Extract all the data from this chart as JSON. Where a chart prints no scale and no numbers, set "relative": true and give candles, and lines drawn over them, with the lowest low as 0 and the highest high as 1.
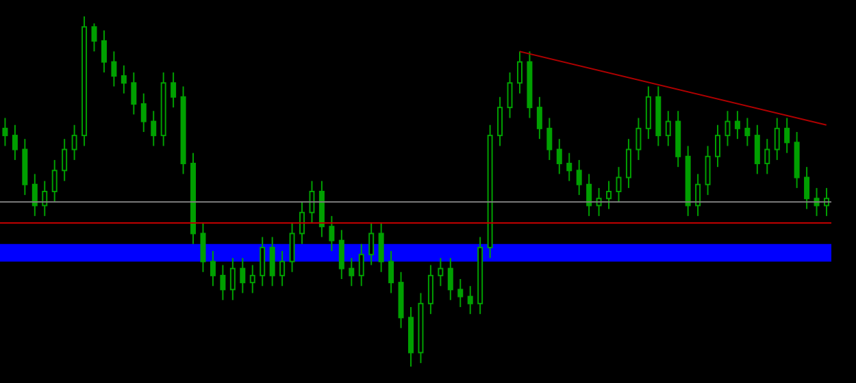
{
  "chart_data": {
    "type": "candlestick",
    "relative": true,
    "categories": [
      null,
      null,
      null,
      null,
      null,
      null,
      null,
      null,
      null,
      null,
      null,
      null,
      null,
      null,
      null,
      null,
      null,
      null,
      null,
      null,
      null,
      null,
      null,
      null,
      null,
      null,
      null,
      null,
      null,
      null,
      null,
      null,
      null,
      null,
      null,
      null,
      null,
      null,
      null,
      null,
      null,
      null,
      null,
      null,
      null,
      null,
      null,
      null,
      null,
      null,
      null,
      null,
      null,
      null,
      null,
      null,
      null,
      null,
      null,
      null,
      null,
      null,
      null,
      null,
      null,
      null,
      null,
      null,
      null,
      null,
      null,
      null,
      null,
      null,
      null,
      null,
      null,
      null,
      null,
      null,
      null,
      null,
      null,
      null
    ],
    "series": [
      {
        "color": "#00a000",
        "ohlc": [
          [
            0.68,
            0.71,
            0.63,
            0.66
          ],
          [
            0.66,
            0.69,
            0.59,
            0.62
          ],
          [
            0.62,
            0.65,
            0.49,
            0.52
          ],
          [
            0.52,
            0.55,
            0.43,
            0.46
          ],
          [
            0.46,
            0.53,
            0.43,
            0.5
          ],
          [
            0.5,
            0.59,
            0.47,
            0.56
          ],
          [
            0.56,
            0.65,
            0.53,
            0.62
          ],
          [
            0.62,
            0.69,
            0.59,
            0.66
          ],
          [
            0.66,
            1.0,
            0.63,
            0.97
          ],
          [
            0.97,
            0.98,
            0.9,
            0.93
          ],
          [
            0.93,
            0.96,
            0.84,
            0.87
          ],
          [
            0.87,
            0.9,
            0.8,
            0.83
          ],
          [
            0.83,
            0.86,
            0.78,
            0.81
          ],
          [
            0.81,
            0.84,
            0.72,
            0.75
          ],
          [
            0.75,
            0.78,
            0.67,
            0.7
          ],
          [
            0.7,
            0.73,
            0.63,
            0.66
          ],
          [
            0.66,
            0.84,
            0.63,
            0.81
          ],
          [
            0.81,
            0.84,
            0.74,
            0.77
          ],
          [
            0.77,
            0.8,
            0.55,
            0.58
          ],
          [
            0.58,
            0.61,
            0.35,
            0.38
          ],
          [
            0.38,
            0.41,
            0.27,
            0.3
          ],
          [
            0.3,
            0.33,
            0.23,
            0.26
          ],
          [
            0.26,
            0.29,
            0.19,
            0.22
          ],
          [
            0.22,
            0.31,
            0.19,
            0.28
          ],
          [
            0.28,
            0.31,
            0.21,
            0.24
          ],
          [
            0.24,
            0.29,
            0.21,
            0.26
          ],
          [
            0.26,
            0.37,
            0.23,
            0.34
          ],
          [
            0.34,
            0.37,
            0.23,
            0.26
          ],
          [
            0.26,
            0.33,
            0.23,
            0.3
          ],
          [
            0.3,
            0.41,
            0.27,
            0.38
          ],
          [
            0.38,
            0.47,
            0.35,
            0.44
          ],
          [
            0.44,
            0.53,
            0.41,
            0.5
          ],
          [
            0.5,
            0.53,
            0.37,
            0.4
          ],
          [
            0.4,
            0.43,
            0.33,
            0.36
          ],
          [
            0.36,
            0.39,
            0.25,
            0.28
          ],
          [
            0.28,
            0.31,
            0.23,
            0.26
          ],
          [
            0.26,
            0.35,
            0.23,
            0.32
          ],
          [
            0.32,
            0.41,
            0.29,
            0.38
          ],
          [
            0.38,
            0.41,
            0.27,
            0.3
          ],
          [
            0.3,
            0.33,
            0.21,
            0.24
          ],
          [
            0.24,
            0.27,
            0.11,
            0.14
          ],
          [
            0.14,
            0.17,
            0.0,
            0.04
          ],
          [
            0.04,
            0.21,
            0.01,
            0.18
          ],
          [
            0.18,
            0.29,
            0.15,
            0.26
          ],
          [
            0.26,
            0.31,
            0.23,
            0.28
          ],
          [
            0.28,
            0.31,
            0.19,
            0.22
          ],
          [
            0.22,
            0.25,
            0.17,
            0.2
          ],
          [
            0.2,
            0.23,
            0.15,
            0.18
          ],
          [
            0.18,
            0.37,
            0.15,
            0.34
          ],
          [
            0.34,
            0.69,
            0.31,
            0.66
          ],
          [
            0.66,
            0.77,
            0.63,
            0.74
          ],
          [
            0.74,
            0.84,
            0.71,
            0.81
          ],
          [
            0.81,
            0.9,
            0.78,
            0.87
          ],
          [
            0.87,
            0.9,
            0.71,
            0.74
          ],
          [
            0.74,
            0.77,
            0.65,
            0.68
          ],
          [
            0.68,
            0.71,
            0.59,
            0.62
          ],
          [
            0.62,
            0.65,
            0.55,
            0.58
          ],
          [
            0.58,
            0.61,
            0.53,
            0.56
          ],
          [
            0.56,
            0.59,
            0.49,
            0.52
          ],
          [
            0.52,
            0.55,
            0.43,
            0.46
          ],
          [
            0.46,
            0.51,
            0.43,
            0.48
          ],
          [
            0.48,
            0.53,
            0.45,
            0.5
          ],
          [
            0.5,
            0.57,
            0.47,
            0.54
          ],
          [
            0.54,
            0.65,
            0.51,
            0.62
          ],
          [
            0.62,
            0.71,
            0.59,
            0.68
          ],
          [
            0.68,
            0.8,
            0.65,
            0.77
          ],
          [
            0.77,
            0.8,
            0.63,
            0.66
          ],
          [
            0.66,
            0.73,
            0.63,
            0.7
          ],
          [
            0.7,
            0.73,
            0.57,
            0.6
          ],
          [
            0.6,
            0.63,
            0.43,
            0.46
          ],
          [
            0.46,
            0.55,
            0.43,
            0.52
          ],
          [
            0.52,
            0.63,
            0.49,
            0.6
          ],
          [
            0.6,
            0.69,
            0.57,
            0.66
          ],
          [
            0.66,
            0.73,
            0.63,
            0.7
          ],
          [
            0.7,
            0.73,
            0.65,
            0.68
          ],
          [
            0.68,
            0.71,
            0.63,
            0.66
          ],
          [
            0.66,
            0.69,
            0.55,
            0.58
          ],
          [
            0.58,
            0.65,
            0.55,
            0.62
          ],
          [
            0.62,
            0.71,
            0.59,
            0.68
          ],
          [
            0.68,
            0.71,
            0.61,
            0.64
          ],
          [
            0.64,
            0.67,
            0.51,
            0.54
          ],
          [
            0.54,
            0.57,
            0.45,
            0.48
          ],
          [
            0.48,
            0.51,
            0.43,
            0.46
          ],
          [
            0.46,
            0.51,
            0.43,
            0.48
          ]
        ]
      },
      {
        "type": "line",
        "color": "#b00000",
        "values": [
          null,
          null,
          null,
          null,
          null,
          null,
          null,
          null,
          null,
          null,
          null,
          null,
          null,
          null,
          null,
          null,
          null,
          null,
          null,
          null,
          null,
          null,
          null,
          null,
          null,
          null,
          null,
          null,
          null,
          null,
          null,
          null,
          null,
          null,
          null,
          null,
          null,
          null,
          null,
          null,
          null,
          null,
          null,
          null,
          null,
          null,
          null,
          null,
          null,
          null,
          null,
          null,
          0.9,
          null,
          null,
          null,
          null,
          null,
          null,
          null,
          null,
          null,
          null,
          null,
          null,
          null,
          null,
          null,
          null,
          null,
          null,
          null,
          null,
          null,
          null,
          null,
          null,
          null,
          null,
          null,
          null,
          null,
          null,
          0.69
        ]
      }
    ],
    "ref_lines": [
      {
        "axis": "y",
        "value": 0.47,
        "color": "#808080"
      },
      {
        "axis": "y",
        "value": 0.41,
        "color": "#c00000"
      }
    ],
    "bands": [
      {
        "axis": "y",
        "from": 0.3,
        "to": 0.35,
        "color": "#0000ff"
      }
    ]
  }
}
